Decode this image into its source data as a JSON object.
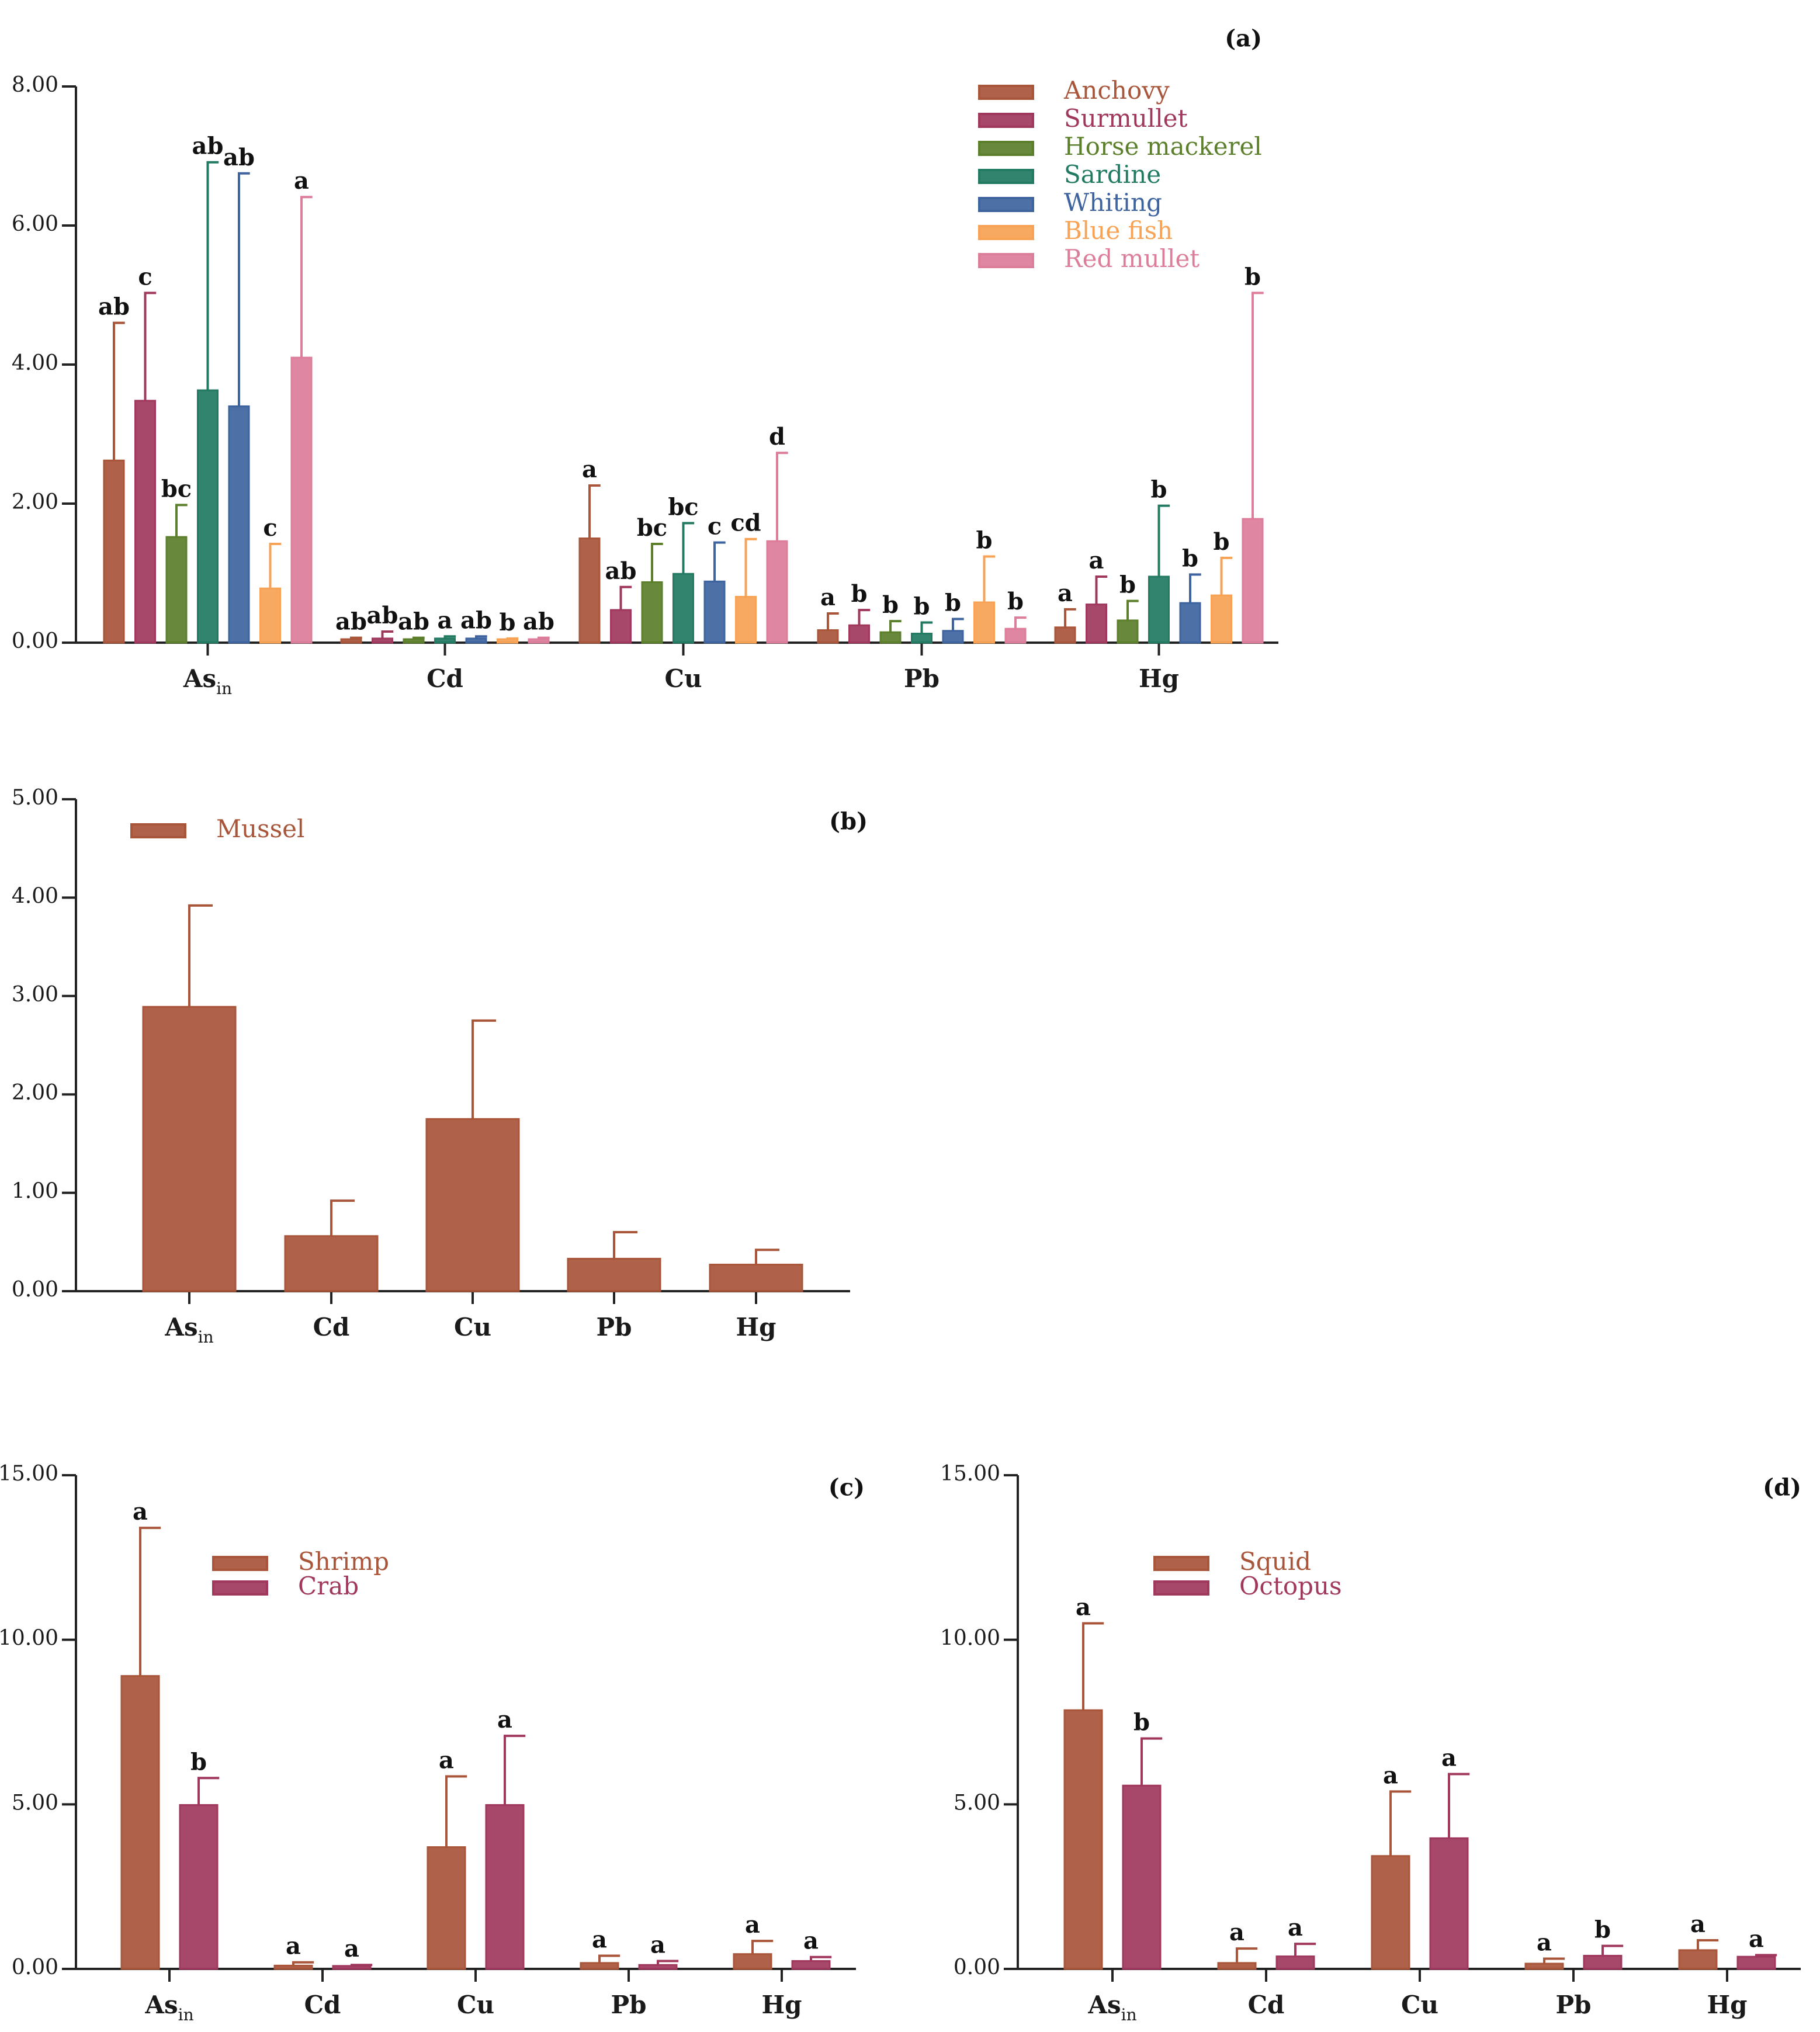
{
  "palette": {
    "anchovy": "#A8553A",
    "surmullet": "#A0385E",
    "horse_mackerel": "#5B7F2B",
    "sardine": "#227A63",
    "whiting": "#3E64A0",
    "blue_fish": "#F7A254",
    "red_mullet": "#DC7D9A"
  },
  "chart_data": [
    {
      "id": "a",
      "panel_label": "(a)",
      "type": "bar",
      "categories": [
        "As",
        "Cd",
        "Cu",
        "Pb",
        "Hg"
      ],
      "category_subscripts": [
        "in",
        "",
        "",
        "",
        ""
      ],
      "ylim": [
        0,
        8
      ],
      "yticks": [
        "0.00",
        "2.00",
        "4.00",
        "6.00",
        "8.00"
      ],
      "legend_position": "top-right",
      "series": [
        {
          "name": "Anchovy",
          "color": "#A8553A",
          "values": [
            2.62,
            0.05,
            1.5,
            0.18,
            0.22
          ],
          "errors": [
            1.98,
            0.02,
            0.76,
            0.24,
            0.26
          ],
          "letters": [
            "ab",
            "ab",
            "a",
            "a",
            "a"
          ]
        },
        {
          "name": "Surmullet",
          "color": "#A0385E",
          "values": [
            3.48,
            0.06,
            0.47,
            0.25,
            0.55
          ],
          "errors": [
            1.55,
            0.1,
            0.33,
            0.22,
            0.4
          ],
          "letters": [
            "c",
            "ab",
            "ab",
            "b",
            "a"
          ]
        },
        {
          "name": "Horse mackerel",
          "color": "#5B7F2B",
          "values": [
            1.52,
            0.05,
            0.87,
            0.15,
            0.32
          ],
          "errors": [
            0.46,
            0.02,
            0.55,
            0.16,
            0.28
          ],
          "letters": [
            "bc",
            "ab",
            "bc",
            "b",
            "b"
          ]
        },
        {
          "name": "Sardine",
          "color": "#227A63",
          "values": [
            3.63,
            0.06,
            0.99,
            0.13,
            0.95
          ],
          "errors": [
            3.28,
            0.03,
            0.73,
            0.16,
            1.02
          ],
          "letters": [
            "ab",
            "a",
            "bc",
            "b",
            "b"
          ]
        },
        {
          "name": "Whiting",
          "color": "#3E64A0",
          "values": [
            3.4,
            0.06,
            0.88,
            0.17,
            0.57
          ],
          "errors": [
            3.35,
            0.03,
            0.56,
            0.17,
            0.41
          ],
          "letters": [
            "ab",
            "ab",
            "c",
            "b",
            "b"
          ]
        },
        {
          "name": "Blue fish",
          "color": "#F7A254",
          "values": [
            0.78,
            0.05,
            0.66,
            0.58,
            0.68
          ],
          "errors": [
            0.64,
            0.01,
            0.83,
            0.66,
            0.54
          ],
          "letters": [
            "c",
            "b",
            "cd",
            "b",
            "b"
          ]
        },
        {
          "name": "Red mullet",
          "color": "#DC7D9A",
          "values": [
            4.1,
            0.05,
            1.46,
            0.2,
            1.78
          ],
          "errors": [
            2.31,
            0.02,
            1.27,
            0.16,
            3.25
          ],
          "letters": [
            "a",
            "ab",
            "d",
            "b",
            "b"
          ]
        }
      ]
    },
    {
      "id": "b",
      "panel_label": "(b)",
      "type": "bar",
      "categories": [
        "As",
        "Cd",
        "Cu",
        "Pb",
        "Hg"
      ],
      "category_subscripts": [
        "in",
        "",
        "",
        "",
        ""
      ],
      "ylim": [
        0,
        5
      ],
      "yticks": [
        "0.00",
        "1.00",
        "2.00",
        "3.00",
        "4.00",
        "5.00"
      ],
      "legend_position": "top-left",
      "series": [
        {
          "name": "Mussel",
          "color": "#A8553A",
          "values": [
            2.89,
            0.56,
            1.75,
            0.33,
            0.27
          ],
          "errors": [
            1.03,
            0.36,
            1.0,
            0.27,
            0.15
          ],
          "letters": [
            "",
            "",
            "",
            "",
            ""
          ]
        }
      ]
    },
    {
      "id": "c",
      "panel_label": "(c)",
      "type": "bar",
      "categories": [
        "As",
        "Cd",
        "Cu",
        "Pb",
        "Hg"
      ],
      "category_subscripts": [
        "in",
        "",
        "",
        "",
        ""
      ],
      "ylim": [
        0,
        15
      ],
      "yticks": [
        "0.00",
        "5.00",
        "10.00",
        "15.00"
      ],
      "legend_position": "top-center",
      "series": [
        {
          "name": "Shrimp",
          "color": "#A8553A",
          "values": [
            8.9,
            0.1,
            3.7,
            0.18,
            0.45
          ],
          "errors": [
            4.5,
            0.1,
            2.15,
            0.22,
            0.4
          ],
          "letters": [
            "a",
            "a",
            "a",
            "a",
            "a"
          ]
        },
        {
          "name": "Crab",
          "color": "#A0385E",
          "values": [
            4.98,
            0.09,
            4.98,
            0.12,
            0.24
          ],
          "errors": [
            0.82,
            0.03,
            2.1,
            0.12,
            0.12
          ],
          "letters": [
            "b",
            "a",
            "a",
            "a",
            "a"
          ]
        }
      ]
    },
    {
      "id": "d",
      "panel_label": "(d)",
      "type": "bar",
      "categories": [
        "As",
        "Cd",
        "Cu",
        "Pb",
        "Hg"
      ],
      "category_subscripts": [
        "in",
        "",
        "",
        "",
        ""
      ],
      "ylim": [
        0,
        15
      ],
      "yticks": [
        "0.00",
        "5.00",
        "10.00",
        "15.00"
      ],
      "legend_position": "top-center",
      "series": [
        {
          "name": "Squid",
          "color": "#A8553A",
          "values": [
            7.86,
            0.18,
            3.43,
            0.16,
            0.57
          ],
          "errors": [
            2.64,
            0.44,
            1.96,
            0.15,
            0.3
          ],
          "letters": [
            "a",
            "a",
            "a",
            "a",
            "a"
          ]
        },
        {
          "name": "Octopus",
          "color": "#A0385E",
          "values": [
            5.57,
            0.38,
            3.97,
            0.4,
            0.37
          ],
          "errors": [
            1.43,
            0.38,
            1.95,
            0.3,
            0.05
          ],
          "letters": [
            "b",
            "a",
            "a",
            "b",
            "a"
          ]
        }
      ]
    }
  ]
}
